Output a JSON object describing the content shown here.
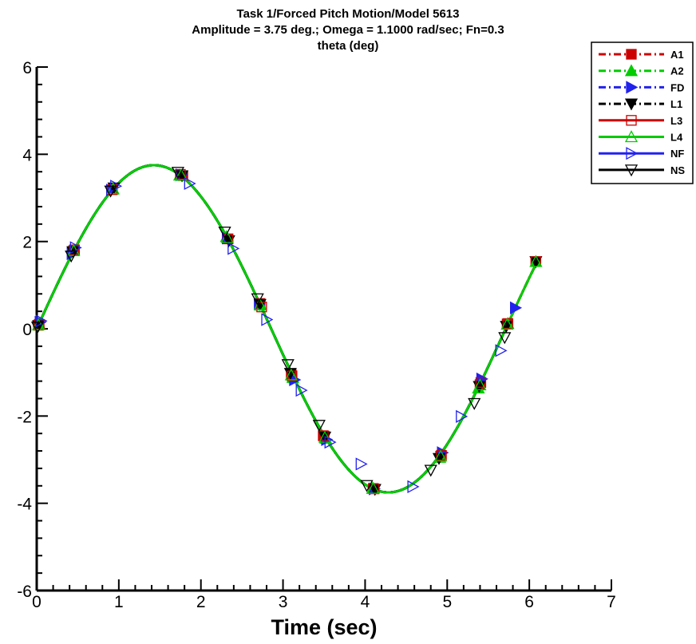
{
  "chart_data": {
    "type": "line",
    "title_lines": [
      "Task 1/Forced Pitch Motion/Model 5613",
      "Amplitude =  3.75 deg.; Omega =  1.1000 rad/sec; Fn=0.3",
      "theta (deg)"
    ],
    "xlabel": "Time (sec)",
    "ylabel": "",
    "xlim": [
      0,
      7
    ],
    "ylim": [
      -6,
      6
    ],
    "x_ticks": [
      "0",
      "1",
      "2",
      "3",
      "4",
      "5",
      "6",
      "7"
    ],
    "y_ticks": [
      "6",
      "4",
      "2",
      "0",
      "-2",
      "-4",
      "-6"
    ],
    "grid": false,
    "legend_position": "top-right",
    "curve": {
      "amplitude": 3.75,
      "omega": 1.1,
      "t_end": 6.08
    },
    "series": [
      {
        "name": "A1",
        "color": "#cc0000",
        "line": "dashdot",
        "marker": "square-filled",
        "x": [
          0.02,
          0.45,
          0.92,
          1.78,
          2.33,
          2.72,
          3.1,
          3.5,
          4.1,
          4.92,
          5.4,
          5.73,
          6.08
        ],
        "y": [
          0.08,
          1.79,
          3.19,
          3.51,
          2.06,
          0.58,
          -1.05,
          -2.46,
          -3.66,
          -2.92,
          -1.28,
          0.11,
          1.54
        ]
      },
      {
        "name": "A2",
        "color": "#00cc00",
        "line": "dashdot",
        "marker": "triangle-up-filled",
        "x": [
          0.03,
          0.45,
          0.93,
          1.74,
          2.31,
          2.73,
          3.12,
          3.52,
          4.09,
          4.91,
          5.38,
          5.74,
          6.08
        ],
        "y": [
          0.12,
          1.79,
          3.2,
          3.52,
          2.11,
          0.54,
          -1.12,
          -2.51,
          -3.66,
          -2.95,
          -1.36,
          0.12,
          1.54
        ]
      },
      {
        "name": "FD",
        "color": "#2222ee",
        "line": "dashdot",
        "marker": "triangle-right-filled",
        "x": [
          0.04,
          0.43,
          0.91,
          1.76,
          2.32,
          2.71,
          3.14,
          3.53,
          4.11,
          4.94,
          5.42,
          5.83
        ],
        "y": [
          0.15,
          1.72,
          3.18,
          3.53,
          2.08,
          0.57,
          -1.17,
          -2.54,
          -3.67,
          -2.84,
          -1.15,
          0.48
        ]
      },
      {
        "name": "L1",
        "color": "#000000",
        "line": "dashdot",
        "marker": "triangle-down-filled",
        "x": [
          0.02,
          0.44,
          0.94,
          1.77,
          2.34,
          2.72,
          3.09,
          3.51,
          4.12,
          4.9,
          5.39,
          5.72,
          6.08
        ],
        "y": [
          0.07,
          1.77,
          3.23,
          3.51,
          2.02,
          0.56,
          -1.02,
          -2.48,
          -3.68,
          -2.97,
          -1.32,
          0.06,
          1.54
        ]
      },
      {
        "name": "L3",
        "color": "#cc0000",
        "line": "solid",
        "marker": "square-open",
        "x": [
          0.03,
          0.46,
          0.92,
          1.75,
          2.33,
          2.74,
          3.11,
          3.49,
          4.11,
          4.93,
          5.41,
          5.74,
          6.08
        ],
        "y": [
          0.1,
          1.81,
          3.19,
          3.54,
          2.06,
          0.5,
          -1.08,
          -2.45,
          -3.67,
          -2.9,
          -1.23,
          0.12,
          1.54
        ]
      },
      {
        "name": "L4",
        "color": "#00cc00",
        "line": "solid",
        "marker": "triangle-up-open",
        "x": [
          0.02,
          0.45,
          0.93,
          1.76,
          2.32,
          2.72,
          3.1,
          3.51,
          4.1,
          4.92,
          5.4,
          5.73,
          6.08
        ],
        "y": [
          0.09,
          1.79,
          3.21,
          3.52,
          2.09,
          0.55,
          -1.06,
          -2.49,
          -3.66,
          -2.92,
          -1.29,
          0.1,
          1.54
        ]
      },
      {
        "name": "NF",
        "color": "#2222ee",
        "line": "solid",
        "marker": "triangle-right-open",
        "x": [
          0.05,
          0.47,
          0.96,
          1.86,
          2.39,
          2.8,
          3.22,
          3.57,
          3.95,
          4.58,
          5.17,
          5.65
        ],
        "y": [
          0.18,
          1.86,
          3.27,
          3.33,
          1.84,
          0.21,
          -1.41,
          -2.6,
          -3.1,
          -3.62,
          -2.01,
          -0.5
        ]
      },
      {
        "name": "NS",
        "color": "#000000",
        "line": "solid",
        "marker": "triangle-down-open",
        "x": [
          0.01,
          0.42,
          0.9,
          1.72,
          2.29,
          2.69,
          3.06,
          3.44,
          4.02,
          4.8,
          5.33,
          5.7
        ],
        "y": [
          0.04,
          1.67,
          3.16,
          3.59,
          2.22,
          0.69,
          -0.82,
          -2.21,
          -3.59,
          -3.24,
          -1.71,
          -0.2
        ]
      }
    ]
  }
}
